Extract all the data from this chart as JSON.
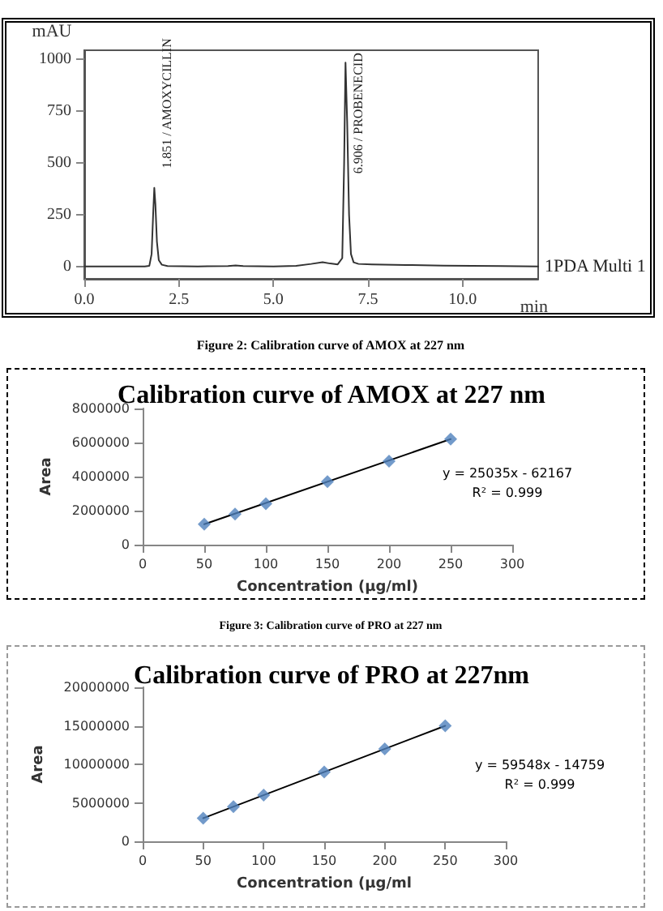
{
  "chart_data": [
    {
      "type": "line",
      "xlabel": "min",
      "ylabel": "mAU",
      "xlim": [
        0,
        12
      ],
      "ylim": [
        -60,
        1045
      ],
      "xticks": [
        {
          "value": 0,
          "label": "0.0"
        },
        {
          "value": 2.5,
          "label": "2.5"
        },
        {
          "value": 5,
          "label": "5.0"
        },
        {
          "value": 7.5,
          "label": "7.5"
        },
        {
          "value": 10,
          "label": "10.0"
        }
      ],
      "yticks": [
        0,
        250,
        500,
        750,
        1000
      ],
      "marker": "none",
      "annotations": [
        {
          "text": "1.851 / AMOXYCILLIN",
          "x": 1.851,
          "y": 380
        },
        {
          "text": "6.906 / PROBENECID",
          "x": 6.906,
          "y": 985
        }
      ],
      "series": [
        {
          "name": "1PDA Multi 1",
          "color": "#333333",
          "x": [
            0,
            1.0,
            1.6,
            1.72,
            1.78,
            1.82,
            1.851,
            1.88,
            1.92,
            1.97,
            2.05,
            2.2,
            3.0,
            3.8,
            4.0,
            4.2,
            5.0,
            5.6,
            6.0,
            6.3,
            6.5,
            6.7,
            6.82,
            6.87,
            6.906,
            6.95,
            7.0,
            7.05,
            7.12,
            7.25,
            7.6,
            8.5,
            9.5,
            11.0,
            12.0
          ],
          "values": [
            0,
            0,
            0,
            3,
            60,
            250,
            380,
            300,
            120,
            30,
            8,
            2,
            0,
            2,
            5,
            2,
            0,
            3,
            12,
            20,
            14,
            10,
            40,
            500,
            985,
            700,
            250,
            60,
            20,
            12,
            10,
            7,
            4,
            2,
            0
          ]
        }
      ]
    },
    {
      "type": "scatter",
      "title": "Calibration curve of AMOX at 227 nm",
      "xlabel": "Concentration (µg/ml)",
      "ylabel": "Area",
      "xlim": [
        0,
        300
      ],
      "ylim": [
        0,
        8000000
      ],
      "xticks": [
        0,
        50,
        100,
        150,
        200,
        250,
        300
      ],
      "yticks": [
        0,
        2000000,
        4000000,
        6000000,
        8000000
      ],
      "annotations": [
        "Figure 2: Calibration curve of AMOX at 227 nm",
        "y = 25035x - 62167",
        "R² = 0.999"
      ],
      "series": [
        {
          "marker": "diamond",
          "color": "#4f81bd",
          "x": [
            50,
            75,
            100,
            150,
            200,
            250
          ],
          "values": [
            1200000,
            1800000,
            2400000,
            3700000,
            4900000,
            6200000
          ]
        },
        {
          "type": "line",
          "marker": "none",
          "color": "#000000",
          "x": [
            50,
            250
          ],
          "values": [
            1200000,
            6200000
          ]
        }
      ]
    },
    {
      "type": "scatter",
      "title": "Calibration curve of PRO at 227nm",
      "xlabel": "Concentration (µg/ml",
      "ylabel": "Area",
      "xlim": [
        0,
        300
      ],
      "ylim": [
        0,
        20000000
      ],
      "xticks": [
        0,
        50,
        100,
        150,
        200,
        250,
        300
      ],
      "yticks": [
        0,
        5000000,
        10000000,
        15000000,
        20000000
      ],
      "annotations": [
        "Figure 3: Calibration curve of PRO at 227 nm",
        "y = 59548x - 14759",
        "R² = 0.999"
      ],
      "series": [
        {
          "marker": "diamond",
          "color": "#4f81bd",
          "x": [
            50,
            75,
            100,
            150,
            200,
            250
          ],
          "values": [
            3000000,
            4500000,
            6000000,
            9000000,
            12000000,
            15000000
          ]
        },
        {
          "type": "line",
          "marker": "none",
          "color": "#000000",
          "x": [
            50,
            250
          ],
          "values": [
            3000000,
            15000000
          ]
        }
      ]
    }
  ]
}
